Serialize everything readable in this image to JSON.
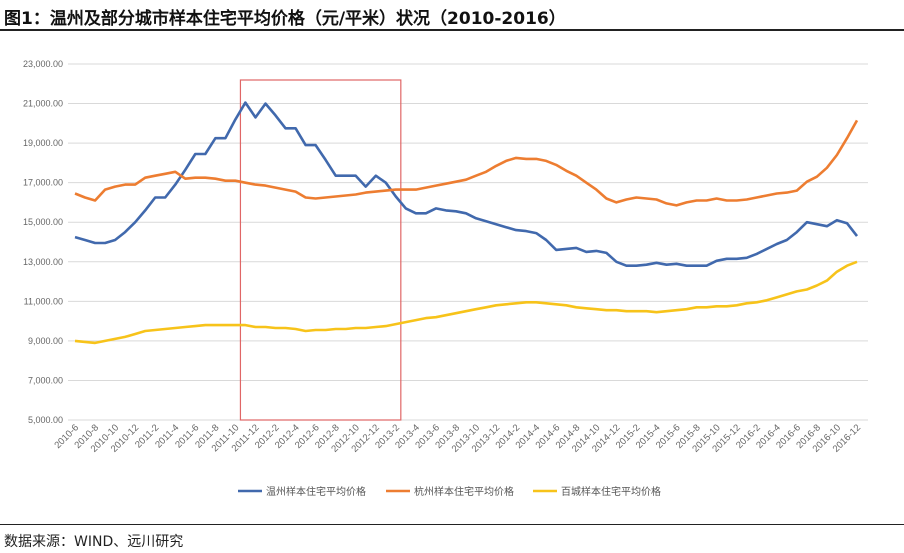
{
  "title": "图1：温州及部分城市样本住宅平均价格（元/平米）状况（2010-2016）",
  "footer": "数据来源：WIND、远川研究",
  "chart_data": {
    "type": "line",
    "title": "图1：温州及部分城市样本住宅平均价格（元/平米）状况（2010-2016）",
    "xlabel": "",
    "ylabel": "",
    "ylim": [
      5000,
      23000
    ],
    "y_ticks": [
      "5,000.00",
      "7,000.00",
      "9,000.00",
      "11,000.00",
      "13,000.00",
      "15,000.00",
      "17,000.00",
      "19,000.00",
      "21,000.00",
      "23,000.00"
    ],
    "grid": true,
    "legend": "bottom",
    "highlight_range": [
      "2011-11",
      "2013-2"
    ],
    "highlight_color": "#e06666",
    "x": [
      "2010-6",
      "2010-7",
      "2010-8",
      "2010-9",
      "2010-10",
      "2010-11",
      "2010-12",
      "2011-1",
      "2011-2",
      "2011-3",
      "2011-4",
      "2011-5",
      "2011-6",
      "2011-7",
      "2011-8",
      "2011-9",
      "2011-10",
      "2011-11",
      "2011-12",
      "2012-1",
      "2012-2",
      "2012-3",
      "2012-4",
      "2012-5",
      "2012-6",
      "2012-7",
      "2012-8",
      "2012-9",
      "2012-10",
      "2012-11",
      "2012-12",
      "2013-1",
      "2013-2",
      "2013-3",
      "2013-4",
      "2013-5",
      "2013-6",
      "2013-7",
      "2013-8",
      "2013-9",
      "2013-10",
      "2013-11",
      "2013-12",
      "2014-1",
      "2014-2",
      "2014-3",
      "2014-4",
      "2014-5",
      "2014-6",
      "2014-7",
      "2014-8",
      "2014-9",
      "2014-10",
      "2014-11",
      "2014-12",
      "2015-1",
      "2015-2",
      "2015-3",
      "2015-4",
      "2015-5",
      "2015-6",
      "2015-7",
      "2015-8",
      "2015-9",
      "2015-10",
      "2015-11",
      "2015-12",
      "2016-1",
      "2016-2",
      "2016-3",
      "2016-4",
      "2016-5",
      "2016-6",
      "2016-7",
      "2016-8",
      "2016-9",
      "2016-10",
      "2016-11",
      "2016-12"
    ],
    "series": [
      {
        "name": "温州样本住宅平均价格",
        "color": "#4169ad",
        "values": [
          14250,
          14100,
          13950,
          13950,
          14100,
          14500,
          15000,
          15600,
          16250,
          16250,
          16900,
          17650,
          18450,
          18450,
          19250,
          19250,
          20200,
          21050,
          20300,
          21000,
          20400,
          19750,
          19750,
          18900,
          18900,
          18150,
          17350,
          17350,
          17350,
          16800,
          17350,
          17000,
          16300,
          15700,
          15450,
          15450,
          15700,
          15600,
          15550,
          15450,
          15200,
          15050,
          14900,
          14750,
          14600,
          14550,
          14450,
          14100,
          13600,
          13650,
          13700,
          13500,
          13550,
          13450,
          13000,
          12800,
          12800,
          12850,
          12950,
          12850,
          12900,
          12800,
          12800,
          12800,
          13050,
          13150,
          13150,
          13200,
          13400,
          13650,
          13900,
          14100,
          14500,
          15000,
          14900,
          14800,
          15100,
          14950,
          14300
        ]
      },
      {
        "name": "杭州样本住宅平均价格",
        "color": "#ed7d31",
        "values": [
          16450,
          16250,
          16100,
          16650,
          16800,
          16900,
          16900,
          17250,
          17350,
          17450,
          17550,
          17200,
          17250,
          17250,
          17200,
          17100,
          17100,
          17000,
          16900,
          16850,
          16750,
          16650,
          16550,
          16250,
          16200,
          16250,
          16300,
          16350,
          16400,
          16500,
          16550,
          16600,
          16650,
          16650,
          16650,
          16750,
          16850,
          16950,
          17050,
          17150,
          17350,
          17550,
          17850,
          18100,
          18250,
          18200,
          18200,
          18100,
          17900,
          17600,
          17350,
          17000,
          16650,
          16200,
          16000,
          16150,
          16250,
          16200,
          16150,
          15950,
          15850,
          16000,
          16100,
          16100,
          16200,
          16100,
          16100,
          16150,
          16250,
          16350,
          16450,
          16500,
          16600,
          17050,
          17300,
          17750,
          18400,
          19250,
          20150
        ]
      },
      {
        "name": "百城样本住宅平均价格",
        "color": "#f7c31a",
        "values": [
          9000,
          8950,
          8900,
          9000,
          9100,
          9200,
          9350,
          9500,
          9550,
          9600,
          9650,
          9700,
          9750,
          9800,
          9800,
          9800,
          9800,
          9800,
          9700,
          9700,
          9650,
          9650,
          9600,
          9500,
          9550,
          9550,
          9600,
          9600,
          9650,
          9650,
          9700,
          9750,
          9850,
          9950,
          10050,
          10150,
          10200,
          10300,
          10400,
          10500,
          10600,
          10700,
          10800,
          10850,
          10900,
          10950,
          10950,
          10900,
          10850,
          10800,
          10700,
          10650,
          10600,
          10550,
          10550,
          10500,
          10500,
          10500,
          10450,
          10500,
          10550,
          10600,
          10700,
          10700,
          10750,
          10750,
          10800,
          10900,
          10950,
          11050,
          11200,
          11350,
          11500,
          11600,
          11800,
          12050,
          12500,
          12800,
          13000
        ]
      }
    ]
  }
}
